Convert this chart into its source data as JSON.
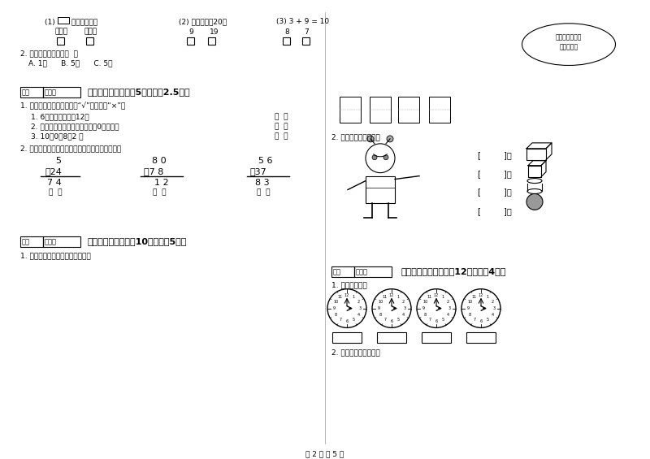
{
  "bg_color": "#ffffff",
  "divider_color": "#aaaaaa",
  "title_bottom": "第 2 页 共 5 页",
  "left": {
    "q1_text": "(1)       是什么形状？",
    "q1_opts": [
      "长方体",
      "正方体"
    ],
    "q2_text": "(2) 谁比积接近20？",
    "q2_opts": [
      "9",
      "19"
    ],
    "q3_text": "(3) 3 + 9 = 10",
    "q3_opts": [
      "8",
      "7"
    ],
    "currency_q": "2. 最小的人民币值是（  ）",
    "currency_abc": "A. 1分      B. 5分      C. 5角",
    "s5_title": "五、对与错（本题共5分，每题2.5分）",
    "s5_q1": "1. 下面的说法对吗，对的打“√”，错的打“×”。",
    "s5_items": [
      "1. 6时整，分针指冇12。",
      "2. 盘里一个苹果也没有，可以用0来表示。",
      "3. 10－0＋8＝2 。"
    ],
    "s5_q2": "2. 病题门诊（先判断对错，并将错的改正过来）。",
    "calc1_top": "5",
    "calc1_op": "＋24",
    "calc1_res": "7 4",
    "calc2_top": "8 0",
    "calc2_op": "－7 8",
    "calc2_res": "1 2",
    "calc3_top": "5 6",
    "calc3_op": "＋37",
    "calc3_res": "8 3",
    "s6_title": "六、数一数（本题內10分，每题5分）",
    "s6_q1": "1. 看图填数，数一数有多少条鱼。"
  },
  "right": {
    "bubble_line1": "哎！一条鱼也没",
    "bubble_line2": "有钓着！。",
    "count_label": "2. 数一数，填一填吧。",
    "s7_title": "七、看图说话（本题內12分，每题4分）",
    "s7_q1": "1. 看钟面填数。",
    "s7_q2": "2. 写出钟面上的时刻。",
    "clock_count": 4,
    "defen": "得分",
    "pinjuan": "评卷人"
  }
}
